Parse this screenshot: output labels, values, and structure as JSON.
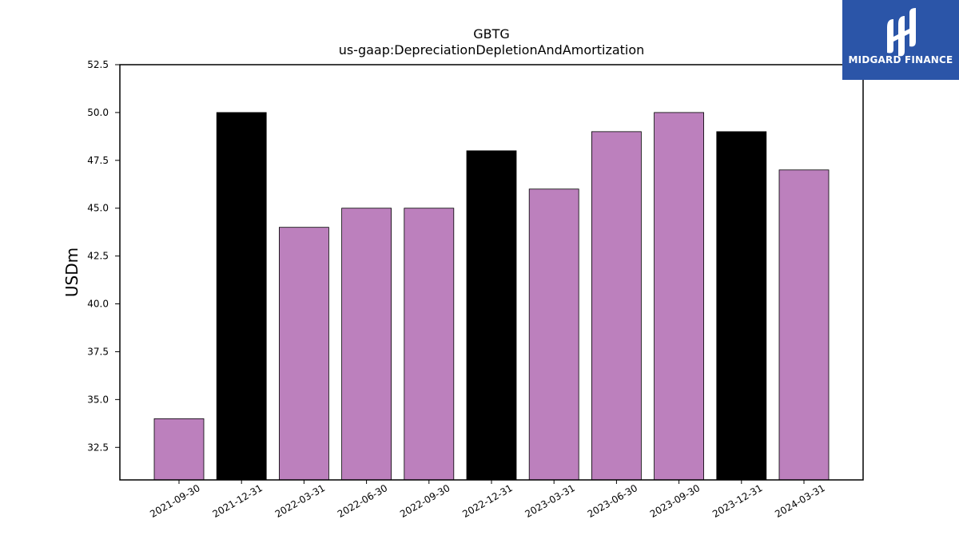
{
  "chart_data": {
    "type": "bar",
    "title": "GBTG",
    "subtitle": "us-gaap:DepreciationDepletionAndAmortization",
    "xlabel": "",
    "ylabel": "USDm",
    "ylim": [
      30.8,
      52.5
    ],
    "yticks": [
      "32.5",
      "35.0",
      "37.5",
      "40.0",
      "42.5",
      "45.0",
      "47.5",
      "50.0",
      "52.5"
    ],
    "categories": [
      "2021-09-30",
      "2021-12-31",
      "2022-03-31",
      "2022-06-30",
      "2022-09-30",
      "2022-12-31",
      "2023-03-31",
      "2023-06-30",
      "2023-09-30",
      "2023-12-31",
      "2024-03-31"
    ],
    "values": [
      34,
      50,
      44,
      45,
      45,
      48,
      46,
      49,
      50,
      49,
      47
    ],
    "bar_colors": [
      "#bc80bd",
      "#000000",
      "#bc80bd",
      "#bc80bd",
      "#bc80bd",
      "#000000",
      "#bc80bd",
      "#bc80bd",
      "#bc80bd",
      "#000000",
      "#bc80bd"
    ],
    "grid": false,
    "legend": "none"
  },
  "logo": {
    "text": "MIDGARD FINANCE",
    "background": "#2b55a8"
  }
}
